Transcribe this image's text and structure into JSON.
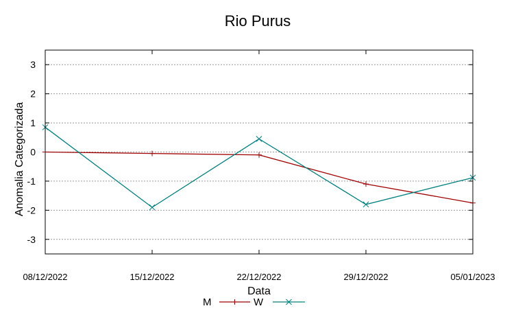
{
  "chart_data": {
    "type": "line",
    "title": "Rio Purus",
    "xlabel": "Data",
    "ylabel": "Anomalia Categorizada",
    "categories": [
      "08/12/2022",
      "15/12/2022",
      "22/12/2022",
      "29/12/2022",
      "05/01/2023"
    ],
    "ylim": [
      -3.5,
      3.5
    ],
    "yticks": [
      -3,
      -2,
      -1,
      0,
      1,
      2,
      3
    ],
    "grid": true,
    "legend_position": "bottom",
    "series": [
      {
        "name": "M",
        "values": [
          0.0,
          -0.05,
          -0.1,
          -1.1,
          -1.75
        ],
        "color": "#a00000",
        "marker": "plus"
      },
      {
        "name": "W",
        "values": [
          0.85,
          -1.9,
          0.45,
          -1.8,
          -0.88
        ],
        "color": "#008080",
        "marker": "x"
      }
    ]
  }
}
